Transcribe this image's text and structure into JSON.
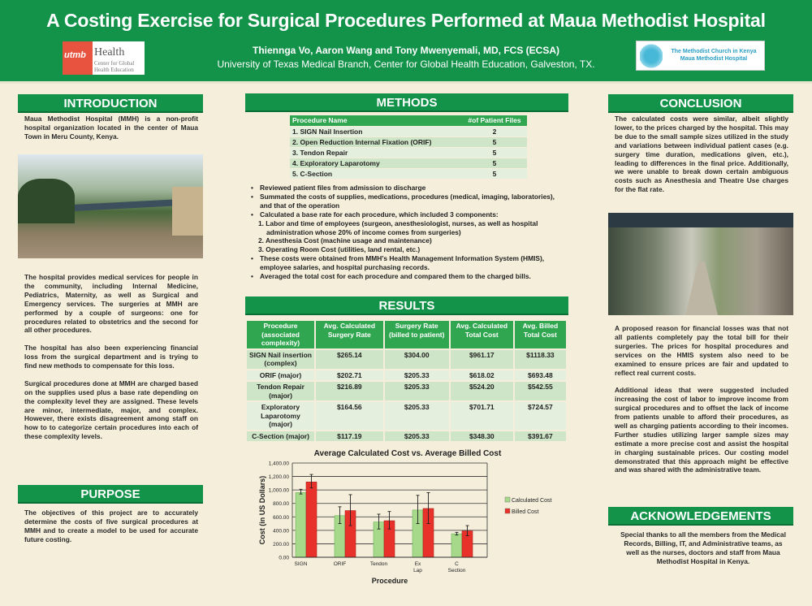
{
  "header": {
    "title": "A Costing Exercise for Surgical Procedures Performed at Maua Methodist Hospital",
    "authors": "Thiennga Vo, Aaron Wang and Tony Mwenyemali, MD, FCS (ECSA)",
    "affiliation": "University of Texas Medical Branch, Center for Global Health Education, Galveston, TX.",
    "logo_left": {
      "mark": "utmb",
      "name": "Health",
      "sub": "Center for Global Health Education"
    },
    "logo_right": {
      "line1": "The Methodist Church in Kenya",
      "line2": "Maua Methodist Hospital"
    }
  },
  "introduction": {
    "heading": "INTRODUCTION",
    "p1": "Maua Methodist Hospital (MMH) is a non-profit hospital organization located in the center of Maua Town in Meru County, Kenya.",
    "p2": "The hospital provides medical services for people in the community, including Internal Medicine, Pediatrics, Maternity, as well as Surgical and Emergency services. The surgeries at MMH are performed by a couple of surgeons: one for procedures related to obstetrics and the second for all other procedures.",
    "p3": "The hospital has also been experiencing financial loss from the surgical department and is trying to find new methods to compensate for this loss.",
    "p4": "Surgical procedures done at MMH are charged based on the supplies used plus a base rate depending on the complexity level they are assigned. These levels are minor, intermediate, major, and complex. However, there exists disagreement among staff on how to to categorize certain procedures into each of these complexity levels."
  },
  "purpose": {
    "heading": "PURPOSE",
    "text": "The objectives of this project are to accurately determine the costs of five surgical procedures at MMH and to create a model to be used for accurate future costing."
  },
  "methods": {
    "heading": "METHODS",
    "table": {
      "headers": [
        "Procedure Name",
        "#of Patient Files"
      ],
      "rows": [
        [
          "1. SIGN Nail Insertion",
          "2"
        ],
        [
          "2. Open Reduction Internal Fixation (ORIF)",
          "5"
        ],
        [
          "3. Tendon Repair",
          "5"
        ],
        [
          "4. Exploratory Laparotomy",
          "5"
        ],
        [
          "5. C-Section",
          "5"
        ]
      ]
    },
    "items": [
      "Reviewed patient files from admission to discharge",
      "Summated the costs of supplies, medications, procedures (medical, imaging, laboratories), and that of the operation",
      "Calculated a base rate for each procedure, which included 3 components:",
      "1. Labor and time of employees (surgeon, anesthesiologist, nurses, as well as hospital administration whose 20% of income comes from surgeries)",
      "2. Anesthesia Cost (machine usage and maintenance)",
      "3. Operating Room Cost (utilities, land rental, etc.)",
      "These costs were obtained from MMH’s Health Management Information System (HMIS), employee salaries, and hospital purchasing records.",
      "Averaged the total cost for each procedure and compared them to the charged bills."
    ]
  },
  "results": {
    "heading": "RESULTS",
    "table": {
      "headers": [
        "Procedure (associated complexity)",
        "Avg. Calculated Surgery Rate",
        "Surgery Rate (billed to patient)",
        "Avg. Calculated Total Cost",
        "Avg. Billed Total Cost"
      ],
      "rows": [
        [
          "SIGN Nail insertion (complex)",
          "$265.14",
          "$304.00",
          "$961.17",
          "$1118.33"
        ],
        [
          "ORIF (major)",
          "$202.71",
          "$205.33",
          "$618.02",
          "$693.48"
        ],
        [
          "Tendon Repair (major)",
          "$216.89",
          "$205.33",
          "$524.20",
          "$542.55"
        ],
        [
          "Exploratory Laparotomy (major)",
          "$164.56",
          "$205.33",
          "$701.71",
          "$724.57"
        ],
        [
          "C-Section (major)",
          "$117.19",
          "$205.33",
          "$348.30",
          "$391.67"
        ]
      ]
    }
  },
  "chart_data": {
    "type": "bar",
    "title": "Average Calculated Cost vs. Average Billed Cost",
    "xlabel": "Procedure",
    "ylabel": "Cost (in US Dollars)",
    "categories": [
      "SIGN",
      "ORIF",
      "Tendon",
      "Ex Lap",
      "C Section"
    ],
    "ylim": [
      0,
      1400
    ],
    "yticks": [
      "0.00",
      "200.00",
      "400.00",
      "600.00",
      "800.00",
      "1,000.00",
      "1,200.00",
      "1,400.00"
    ],
    "grid": true,
    "legend": "right",
    "series": [
      {
        "name": "Calculated Cost",
        "color": "#a6d98a",
        "values": [
          961.17,
          618.02,
          524.2,
          701.71,
          348.3
        ],
        "error": [
          [
            940,
            1010
          ],
          [
            500,
            750
          ],
          [
            420,
            640
          ],
          [
            500,
            920
          ],
          [
            330,
            370
          ]
        ]
      },
      {
        "name": "Billed Cost",
        "color": "#e8312a",
        "values": [
          1118.33,
          693.48,
          542.55,
          724.57,
          391.67
        ],
        "error": [
          [
            1030,
            1230
          ],
          [
            470,
            930
          ],
          [
            420,
            680
          ],
          [
            500,
            960
          ],
          [
            320,
            470
          ]
        ]
      }
    ]
  },
  "conclusion": {
    "heading": "CONCLUSION",
    "p1": "The calculated costs were similar, albeit slightly lower, to the prices charged by the hospital. This may be due to the small sample sizes utilized in the study and variations between individual patient cases (e.g. surgery time duration, medications given, etc.), leading to differences in the final price. Additionally, we were unable to break down certain ambiguous costs such as Anesthesia and Theatre Use charges for the flat rate.",
    "p2": "A proposed reason for financial losses was that not all patients completely pay the total bill for their surgeries. The prices for hospital procedures and services on the HMIS system also need to be examined to ensure prices are fair and updated to reflect real current costs.",
    "p3": "Additional ideas that were suggested included increasing the cost of labor to improve income from surgical procedures and to offset the lack of income from patients unable to afford their procedures, as well as charging patients according to their incomes. Further studies utilizing larger sample sizes may estimate a more precise cost and assist the hospital in charging sustainable prices. Our costing model demonstrated that this approach might be effective and was shared with the administrative team."
  },
  "acknowledgements": {
    "heading": "ACKNOWLEDGEMENTS",
    "text": "Special thanks to all the members from the Medical Records, Billing, IT, and Administrative teams, as well as the nurses, doctors and staff from Maua Methodist Hospital in Kenya."
  }
}
